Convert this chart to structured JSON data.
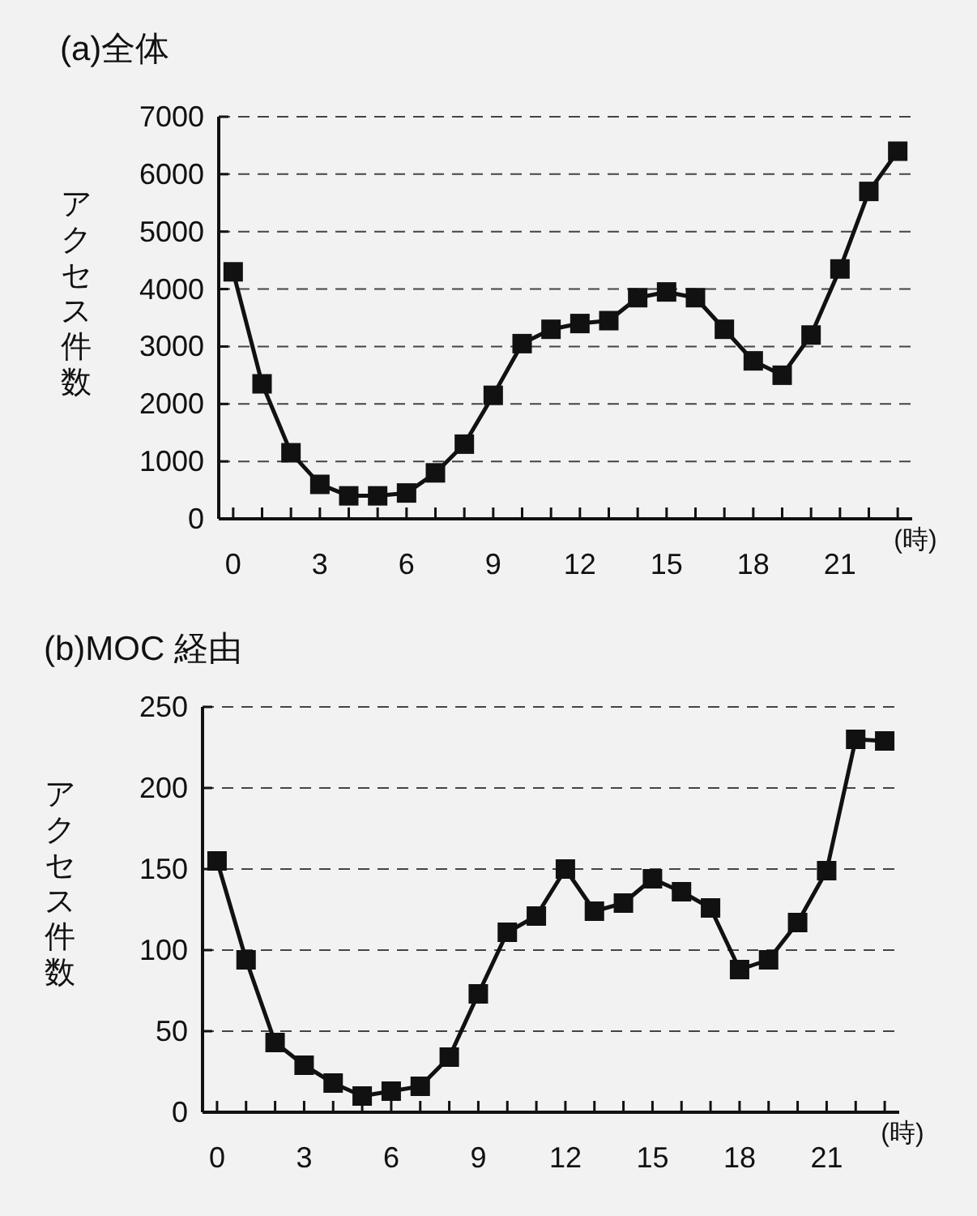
{
  "chart_data": [
    {
      "type": "line",
      "title": "(a)全体",
      "ylabel": "アクセス件数",
      "xlabel": "(時)",
      "x": [
        0,
        1,
        2,
        3,
        4,
        5,
        6,
        7,
        8,
        9,
        10,
        11,
        12,
        13,
        14,
        15,
        16,
        17,
        18,
        19,
        20,
        21,
        22,
        23
      ],
      "series": [
        {
          "color": "#111111",
          "values": [
            4300,
            2350,
            1150,
            600,
            400,
            400,
            450,
            800,
            1300,
            2150,
            3050,
            3300,
            3400,
            3450,
            3850,
            3950,
            3850,
            3300,
            2750,
            2500,
            3200,
            4350,
            5700,
            6400
          ]
        }
      ],
      "xlim": [
        -0.5,
        23.5
      ],
      "xticks": [
        0,
        {
          "value": 1,
          "label": null
        },
        {
          "value": 2,
          "label": null
        },
        3,
        {
          "value": 4,
          "label": null
        },
        {
          "value": 5,
          "label": null
        },
        6,
        {
          "value": 7,
          "label": null
        },
        {
          "value": 8,
          "label": null
        },
        9,
        {
          "value": 10,
          "label": null
        },
        {
          "value": 11,
          "label": null
        },
        12,
        {
          "value": 13,
          "label": null
        },
        {
          "value": 14,
          "label": null
        },
        15,
        {
          "value": 16,
          "label": null
        },
        {
          "value": 17,
          "label": null
        },
        18,
        {
          "value": 19,
          "label": null
        },
        {
          "value": 20,
          "label": null
        },
        21,
        {
          "value": 22,
          "label": null
        },
        {
          "value": 23,
          "label": null
        }
      ],
      "ylim": [
        0,
        7000
      ],
      "yticks": [
        0,
        1000,
        2000,
        3000,
        4000,
        5000,
        6000,
        7000
      ],
      "grid": "y",
      "marker": "square",
      "line_style": "solid"
    },
    {
      "type": "line",
      "title": "(b)MOC 経由",
      "ylabel": "アクセス件数",
      "xlabel": "(時)",
      "x": [
        0,
        1,
        2,
        3,
        4,
        5,
        6,
        7,
        8,
        9,
        10,
        11,
        12,
        13,
        14,
        15,
        16,
        17,
        18,
        19,
        20,
        21,
        22,
        23
      ],
      "series": [
        {
          "color": "#111111",
          "values": [
            155,
            94,
            43,
            29,
            18,
            10,
            13,
            16,
            34,
            73,
            111,
            121,
            150,
            124,
            129,
            144,
            136,
            126,
            88,
            94,
            117,
            149,
            230,
            229
          ]
        }
      ],
      "xlim": [
        -0.5,
        23.5
      ],
      "xticks": [
        0,
        {
          "value": 1,
          "label": null
        },
        {
          "value": 2,
          "label": null
        },
        3,
        {
          "value": 4,
          "label": null
        },
        {
          "value": 5,
          "label": null
        },
        6,
        {
          "value": 7,
          "label": null
        },
        {
          "value": 8,
          "label": null
        },
        9,
        {
          "value": 10,
          "label": null
        },
        {
          "value": 11,
          "label": null
        },
        12,
        {
          "value": 13,
          "label": null
        },
        {
          "value": 14,
          "label": null
        },
        15,
        {
          "value": 16,
          "label": null
        },
        {
          "value": 17,
          "label": null
        },
        18,
        {
          "value": 19,
          "label": null
        },
        {
          "value": 20,
          "label": null
        },
        21,
        {
          "value": 22,
          "label": null
        },
        {
          "value": 23,
          "label": null
        }
      ],
      "ylim": [
        0,
        250
      ],
      "yticks": [
        0,
        50,
        100,
        150,
        200,
        250
      ],
      "grid": "y",
      "marker": "square",
      "line_style": "solid"
    }
  ]
}
